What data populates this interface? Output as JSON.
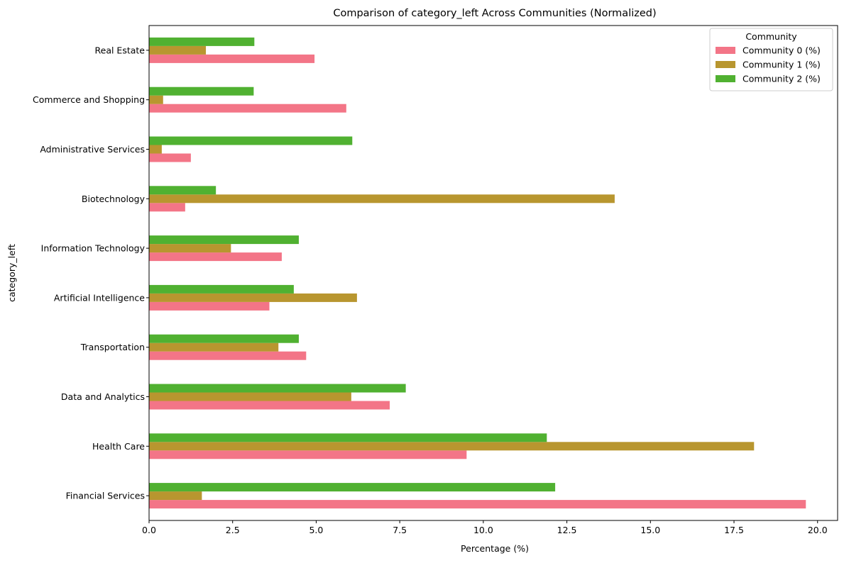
{
  "chart_data": {
    "type": "bar",
    "orientation": "horizontal",
    "title": "Comparison of category_left Across Communities (Normalized)",
    "xlabel": "Percentage (%)",
    "ylabel": "category_left",
    "xlim": [
      0,
      20.6
    ],
    "xticks": [
      0.0,
      2.5,
      5.0,
      7.5,
      10.0,
      12.5,
      15.0,
      17.5,
      20.0
    ],
    "xtick_labels": [
      "0.0",
      "2.5",
      "5.0",
      "7.5",
      "10.0",
      "12.5",
      "15.0",
      "17.5",
      "20.0"
    ],
    "grid": false,
    "legend": {
      "title": "Community",
      "placement": "top-right"
    },
    "categories": [
      "Financial Services",
      "Health Care",
      "Data and Analytics",
      "Transportation",
      "Artificial Intelligence",
      "Information Technology",
      "Biotechnology",
      "Administrative Services",
      "Commerce and Shopping",
      "Real Estate"
    ],
    "series": [
      {
        "name": "Community 0 (%)",
        "color": "#f37587",
        "values": [
          19.65,
          9.5,
          7.2,
          4.7,
          3.6,
          3.97,
          1.08,
          1.25,
          5.9,
          4.95
        ]
      },
      {
        "name": "Community 1 (%)",
        "color": "#b8962f",
        "values": [
          1.58,
          18.1,
          6.05,
          3.87,
          6.22,
          2.45,
          13.93,
          0.38,
          0.42,
          1.7
        ]
      },
      {
        "name": "Community 2 (%)",
        "color": "#50b131",
        "values": [
          12.15,
          11.9,
          7.68,
          4.48,
          4.33,
          4.48,
          2.0,
          6.08,
          3.13,
          3.15
        ]
      }
    ]
  }
}
